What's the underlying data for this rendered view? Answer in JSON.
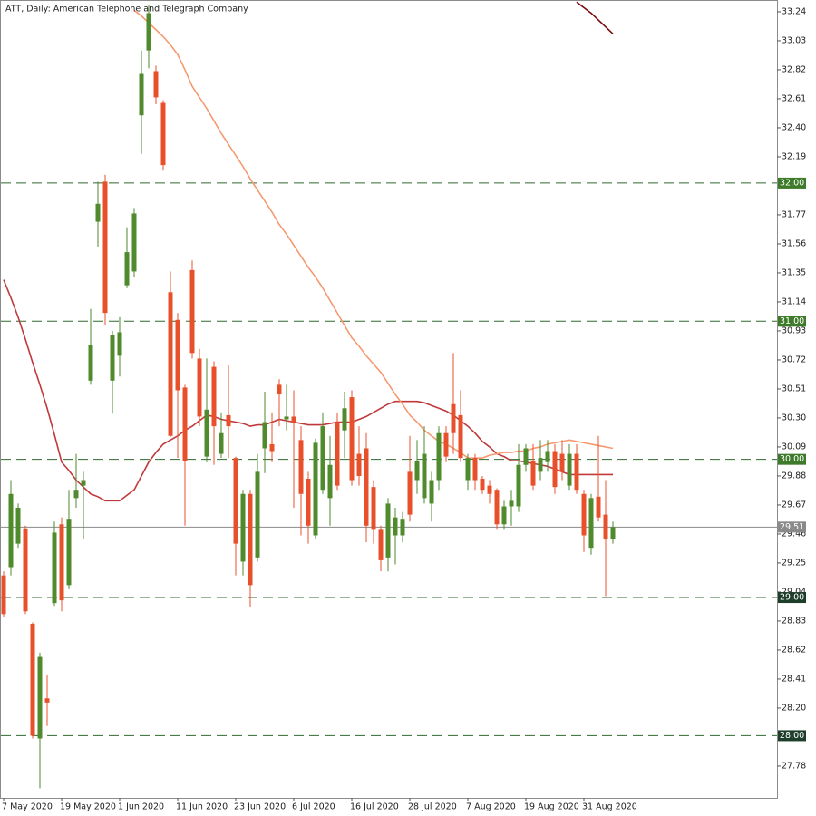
{
  "chart_data": {
    "type": "candlestick",
    "title": "ATT, Daily:  American Telephone and Telegraph Company",
    "categories": [
      "7 May 2020",
      null,
      null,
      null,
      null,
      null,
      null,
      null,
      "19 May 2020",
      null,
      null,
      null,
      null,
      null,
      null,
      null,
      "1 Jun 2020",
      null,
      null,
      null,
      null,
      null,
      null,
      null,
      "11 Jun 2020",
      null,
      null,
      null,
      null,
      null,
      null,
      null,
      "23 Jun 2020",
      null,
      null,
      null,
      null,
      null,
      null,
      null,
      "6 Jul 2020",
      null,
      null,
      null,
      null,
      null,
      null,
      null,
      "16 Jul 2020",
      null,
      null,
      null,
      null,
      null,
      null,
      null,
      "28 Jul 2020",
      null,
      null,
      null,
      null,
      null,
      null,
      null,
      "7 Aug 2020",
      null,
      null,
      null,
      null,
      null,
      null,
      null,
      "19 Aug 2020",
      null,
      null,
      null,
      null,
      null,
      null,
      null,
      "31 Aug 2020",
      null,
      null,
      null,
      null
    ],
    "open": [
      29.16,
      29.22,
      29.39,
      29.5,
      28.81,
      27.98,
      28.27,
      28.96,
      29.53,
      29.09,
      29.72,
      29.81,
      30.57,
      31.72,
      32.01,
      30.57,
      30.75,
      31.26,
      31.36,
      32.49,
      32.96,
      32.81,
      32.58,
      31.21,
      31.01,
      30.52,
      31.37,
      30.73,
      30.02,
      30.67,
      30.04,
      30.32,
      30.01,
      29.26,
      29.75,
      29.29,
      30.08,
      30.11,
      30.54,
      30.29,
      30.31,
      30.14,
      29.86,
      29.45,
      29.78,
      29.72,
      30.27,
      30.21,
      30.45,
      30.04,
      30.08,
      29.8,
      29.49,
      29.29,
      29.45,
      29.45,
      29.91,
      29.85,
      29.72,
      29.68,
      29.85,
      30.19,
      30.4,
      30.32,
      29.85,
      30.01,
      29.86,
      29.81,
      29.78,
      29.53,
      29.66,
      29.66,
      29.96,
      29.99,
      29.91,
      29.98,
      30.06,
      30.04,
      29.81,
      30.04,
      29.75,
      29.36,
      29.73,
      29.6,
      29.42
    ],
    "high": [
      29.19,
      29.85,
      29.68,
      29.52,
      28.82,
      28.6,
      28.44,
      29.55,
      29.58,
      29.78,
      30.04,
      29.91,
      31.09,
      32.01,
      32.06,
      30.93,
      31.03,
      31.68,
      31.82,
      32.96,
      33.29,
      32.85,
      32.6,
      31.36,
      31.06,
      30.54,
      31.44,
      30.8,
      30.73,
      30.71,
      30.34,
      30.68,
      30.02,
      29.78,
      29.78,
      30.04,
      30.49,
      30.34,
      30.58,
      30.54,
      30.5,
      30.24,
      29.91,
      30.15,
      30.34,
      30.17,
      30.34,
      30.49,
      30.5,
      30.24,
      30.19,
      29.85,
      29.52,
      29.72,
      29.65,
      29.62,
      30.17,
      30.14,
      30.24,
      29.91,
      30.24,
      30.24,
      30.77,
      30.5,
      30.04,
      30.04,
      29.88,
      29.85,
      29.79,
      29.7,
      29.78,
      30.11,
      30.11,
      30.11,
      30.14,
      30.14,
      30.11,
      30.14,
      30.11,
      30.11,
      29.78,
      29.75,
      30.17,
      29.85,
      29.55
    ],
    "low": [
      28.86,
      29.16,
      29.36,
      28.88,
      27.98,
      27.62,
      28.07,
      28.94,
      28.9,
      29.06,
      29.65,
      29.42,
      30.54,
      31.54,
      30.97,
      30.33,
      30.6,
      31.24,
      31.32,
      32.21,
      32.83,
      32.57,
      32.09,
      30.16,
      30.01,
      29.52,
      30.73,
      30.24,
      29.98,
      29.96,
      30.01,
      30.01,
      29.16,
      29.16,
      28.93,
      29.26,
      29.9,
      29.98,
      30.24,
      30.21,
      29.65,
      29.45,
      29.39,
      29.42,
      29.75,
      29.52,
      29.78,
      30.01,
      29.81,
      29.81,
      29.4,
      29.39,
      29.19,
      29.19,
      29.24,
      29.4,
      29.55,
      29.75,
      29.68,
      29.55,
      29.78,
      29.98,
      30.04,
      29.98,
      29.78,
      29.78,
      29.75,
      29.68,
      29.49,
      29.49,
      29.52,
      29.62,
      29.91,
      29.78,
      29.85,
      29.91,
      29.75,
      29.85,
      29.78,
      29.75,
      29.33,
      29.31,
      29.55,
      29.01,
      29.39
    ],
    "close": [
      28.88,
      29.75,
      29.65,
      28.9,
      28.0,
      28.57,
      28.24,
      29.47,
      28.98,
      29.57,
      29.78,
      29.85,
      30.83,
      31.85,
      31.06,
      30.9,
      30.92,
      31.5,
      31.78,
      32.79,
      33.23,
      32.62,
      32.13,
      30.17,
      30.5,
      29.99,
      30.77,
      30.31,
      30.36,
      30.24,
      30.19,
      30.24,
      29.39,
      29.75,
      29.09,
      29.91,
      30.27,
      30.06,
      30.47,
      30.31,
      30.27,
      29.75,
      29.52,
      30.12,
      30.24,
      29.96,
      29.81,
      30.37,
      29.85,
      29.88,
      29.52,
      29.49,
      29.27,
      29.68,
      29.58,
      29.57,
      29.6,
      29.99,
      30.04,
      29.85,
      30.19,
      30.02,
      30.19,
      30.01,
      30.01,
      29.85,
      29.78,
      29.75,
      29.53,
      29.66,
      29.7,
      29.96,
      30.08,
      29.81,
      30.01,
      30.06,
      29.8,
      29.91,
      30.04,
      29.78,
      29.45,
      29.72,
      29.58,
      29.42,
      29.51
    ],
    "up_color": "#4f8a2c",
    "down_color": "#e8502c",
    "series": [
      {
        "color": "#c0393b",
        "values": [
          31.3,
          31.17,
          31.03,
          30.87,
          30.7,
          30.54,
          30.37,
          30.18,
          29.98,
          29.92,
          29.85,
          29.8,
          29.75,
          29.73,
          29.7,
          29.7,
          29.7,
          29.74,
          29.78,
          29.88,
          29.98,
          30.05,
          30.11,
          30.14,
          30.17,
          30.21,
          30.24,
          30.28,
          30.32,
          30.31,
          30.29,
          30.28,
          30.27,
          30.26,
          30.24,
          30.25,
          30.25,
          30.27,
          30.29,
          30.28,
          30.27,
          30.26,
          30.25,
          30.25,
          30.25,
          30.26,
          30.27,
          30.27,
          30.27,
          30.29,
          30.31,
          30.34,
          30.37,
          30.4,
          30.42,
          30.42,
          30.42,
          30.42,
          30.41,
          30.39,
          30.37,
          30.35,
          30.32,
          30.28,
          30.24,
          30.19,
          30.13,
          30.09,
          30.04,
          30.02,
          29.99,
          29.99,
          29.98,
          29.97,
          29.96,
          29.95,
          29.93,
          29.91,
          29.89,
          29.89,
          29.89,
          29.89,
          29.89,
          29.89,
          29.89
        ]
      },
      {
        "color": "#f59a70",
        "values": [
          null,
          null,
          null,
          null,
          null,
          null,
          null,
          null,
          null,
          null,
          null,
          null,
          null,
          null,
          null,
          null,
          null,
          null,
          33.25,
          33.21,
          33.16,
          33.11,
          33.06,
          33.0,
          32.93,
          32.82,
          32.7,
          32.62,
          32.54,
          32.45,
          32.36,
          32.28,
          32.2,
          32.12,
          32.03,
          31.95,
          31.87,
          31.79,
          31.7,
          31.63,
          31.55,
          31.47,
          31.39,
          31.32,
          31.24,
          31.15,
          31.06,
          30.97,
          30.88,
          30.82,
          30.75,
          30.69,
          30.63,
          30.55,
          30.47,
          30.4,
          30.32,
          30.27,
          30.21,
          30.17,
          30.13,
          30.11,
          30.08,
          30.05,
          30.01,
          30.01,
          30.01,
          30.03,
          30.04,
          30.05,
          30.05,
          30.06,
          30.06,
          30.08,
          30.09,
          30.11,
          30.12,
          30.13,
          30.14,
          30.13,
          30.12,
          30.11,
          30.1,
          30.09,
          30.08
        ]
      },
      {
        "color": "#7a0c0c",
        "values": [
          null,
          null,
          null,
          null,
          null,
          null,
          null,
          null,
          null,
          null,
          null,
          null,
          null,
          null,
          null,
          null,
          null,
          null,
          null,
          null,
          null,
          null,
          null,
          null,
          null,
          null,
          null,
          null,
          null,
          null,
          null,
          null,
          null,
          null,
          null,
          null,
          null,
          null,
          null,
          null,
          null,
          null,
          null,
          null,
          null,
          null,
          null,
          null,
          null,
          null,
          null,
          null,
          null,
          null,
          null,
          null,
          null,
          null,
          null,
          null,
          null,
          null,
          null,
          null,
          null,
          null,
          null,
          null,
          null,
          null,
          null,
          null,
          null,
          null,
          null,
          null,
          null,
          null,
          null,
          33.31,
          33.27,
          33.23,
          33.18,
          33.13,
          33.08
        ]
      }
    ],
    "ylim": [
      27.55,
      33.325
    ],
    "yticks": [
      33.24,
      33.03,
      32.82,
      32.61,
      {
        "value": 32.4,
        "label": "32.40"
      },
      32.19,
      31.77,
      31.56,
      31.35,
      31.14,
      30.93,
      30.72,
      30.51,
      {
        "value": 30.3,
        "label": "30.30"
      },
      30.09,
      29.88,
      29.67,
      29.46,
      29.25,
      29.04,
      28.83,
      28.62,
      28.41,
      {
        "value": 28.2,
        "label": "28.20"
      },
      27.78
    ],
    "levels": [
      {
        "value": 32,
        "label": "32.00",
        "box_color": "#3d7a2a"
      },
      {
        "value": 31,
        "label": "31.00",
        "box_color": "#3d7a2a"
      },
      {
        "value": 30,
        "label": "30.00",
        "box_color": "#3d7a2a"
      },
      {
        "value": 29,
        "label": "29.00",
        "box_color": "#1f3d2b"
      },
      {
        "value": 28,
        "label": "28.00",
        "box_color": "#1f3d2b"
      }
    ],
    "level_color": "#2f6a2f",
    "last_price": 29.51,
    "last_price_color": "#8a8a8a"
  }
}
